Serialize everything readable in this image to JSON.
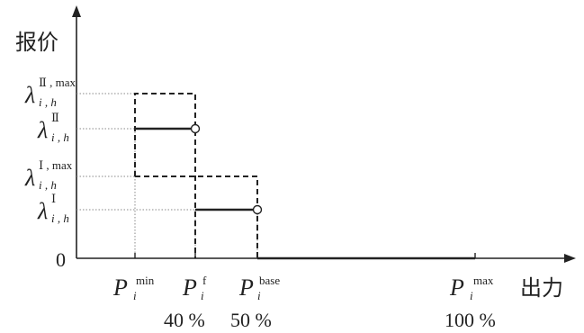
{
  "axes": {
    "y_label": "报价",
    "x_label": "出力",
    "origin": "0"
  },
  "y_ticks": [
    {
      "id": "lam2max",
      "base": "λ",
      "sub": "i , h",
      "sup": "Ⅱ , max"
    },
    {
      "id": "lam2",
      "base": "λ",
      "sub": "i , h",
      "sup": "Ⅱ"
    },
    {
      "id": "lam1max",
      "base": "λ",
      "sub": "i , h",
      "sup": "Ⅰ , max"
    },
    {
      "id": "lam1",
      "base": "λ",
      "sub": "i , h",
      "sup": "Ⅰ"
    }
  ],
  "x_ticks": [
    {
      "id": "pmin",
      "base": "P",
      "sub": "i",
      "sup": "min",
      "percent": ""
    },
    {
      "id": "pf",
      "base": "P",
      "sub": "i",
      "sup": "f",
      "percent": "40 %"
    },
    {
      "id": "pbase",
      "base": "P",
      "sub": "i",
      "sup": "base",
      "percent": "50 %"
    },
    {
      "id": "pmax",
      "base": "P",
      "sub": "i",
      "sup": "max",
      "percent": "100 %"
    }
  ]
}
